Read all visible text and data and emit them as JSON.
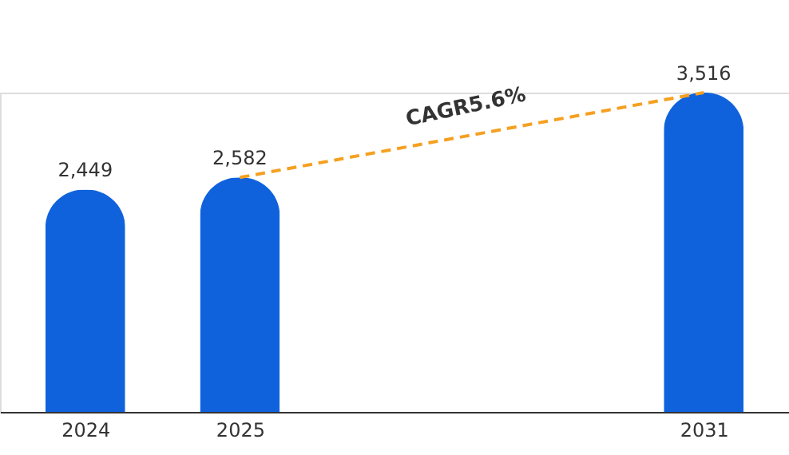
{
  "chart_data": {
    "type": "bar",
    "categories": [
      "2024",
      "2025",
      null,
      null,
      "2031"
    ],
    "values": [
      2449,
      2582,
      null,
      null,
      3516
    ],
    "value_labels": [
      "2,449",
      "2,582",
      null,
      null,
      "3,516"
    ],
    "color": "#0f62dc",
    "annotations": [
      "CAGR5.6%"
    ]
  }
}
